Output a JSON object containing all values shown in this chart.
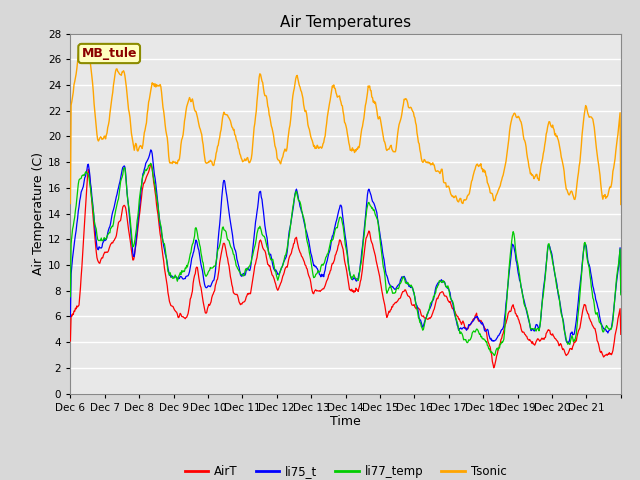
{
  "title": "Air Temperatures",
  "xlabel": "Time",
  "ylabel": "Air Temperature (C)",
  "ylim": [
    0,
    28
  ],
  "yticks": [
    0,
    2,
    4,
    6,
    8,
    10,
    12,
    14,
    16,
    18,
    20,
    22,
    24,
    26,
    28
  ],
  "x_labels": [
    "Dec 6",
    "Dec 7",
    "Dec 8",
    "Dec 9",
    "Dec 10",
    "Dec 11",
    "Dec 12",
    "Dec 13",
    "Dec 14",
    "Dec 15",
    "Dec 16",
    "Dec 17",
    "Dec 18",
    "Dec 19",
    "Dec 20",
    "Dec 21"
  ],
  "annotation_text": "MB_tule",
  "annotation_color": "#8B0000",
  "annotation_bg": "#FFFFC0",
  "annotation_border": "#8B8B00",
  "series_colors": {
    "AirT": "#FF0000",
    "li75_t": "#0000FF",
    "li77_temp": "#00CC00",
    "Tsonic": "#FFA500"
  },
  "bg_color": "#D8D8D8",
  "plot_bg": "#E8E8E8",
  "grid_color": "#FFFFFF",
  "title_fontsize": 11,
  "axis_label_fontsize": 9,
  "tick_fontsize": 7.5,
  "legend_fontsize": 8.5
}
